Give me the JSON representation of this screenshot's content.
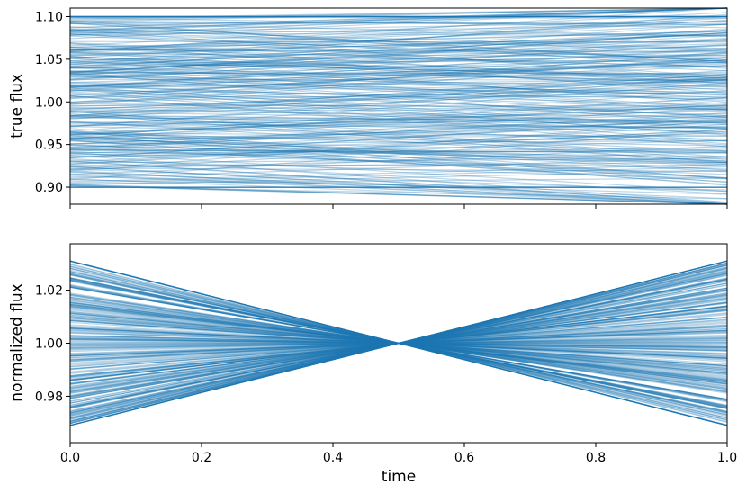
{
  "chart_data": [
    {
      "type": "line",
      "panel": "top",
      "xlabel": "",
      "ylabel": "true flux",
      "xlim": [
        0.0,
        1.0
      ],
      "ylim": [
        0.88,
        1.11
      ],
      "yticks": [
        0.9,
        0.95,
        1.0,
        1.05,
        1.1
      ],
      "ytick_labels": [
        "0.90",
        "0.95",
        "1.00",
        "1.05",
        "1.10"
      ],
      "xticks": [
        0.0,
        0.2,
        0.4,
        0.6,
        0.8,
        1.0
      ],
      "xtick_labels_shown": false,
      "line_color": "#1f77b4",
      "line_alpha": 0.3,
      "series_count": 300,
      "series_model": "flux(t) = a + b * t, clipped to [0.90, 1.10]",
      "series": [
        {
          "start": 1.1,
          "end": 1.1
        },
        {
          "start": 1.08,
          "end": 1.06
        },
        {
          "start": 1.06,
          "end": 1.04
        },
        {
          "start": 1.03,
          "end": 1.05
        },
        {
          "start": 1.0,
          "end": 0.98
        },
        {
          "start": 0.98,
          "end": 1.01
        },
        {
          "start": 0.96,
          "end": 0.94
        },
        {
          "start": 0.94,
          "end": 0.96
        },
        {
          "start": 0.92,
          "end": 0.93
        },
        {
          "start": 0.9,
          "end": 0.9
        }
      ],
      "grid": false
    },
    {
      "type": "line",
      "panel": "bottom",
      "xlabel": "time",
      "ylabel": "normalized flux",
      "xlim": [
        0.0,
        1.0
      ],
      "ylim": [
        0.9625,
        1.0375
      ],
      "yticks": [
        0.98,
        1.0,
        1.02
      ],
      "ytick_labels": [
        "0.98",
        "1.00",
        "1.02"
      ],
      "xticks": [
        0.0,
        0.2,
        0.4,
        0.6,
        0.8,
        1.0
      ],
      "xtick_labels": [
        "0.0",
        "0.2",
        "0.4",
        "0.6",
        "0.8",
        "1.0"
      ],
      "line_color": "#1f77b4",
      "line_alpha": 0.3,
      "series_count": 300,
      "series_model": "normalized flux = true flux / mean(true flux); pinched at t=0.5",
      "series": [
        {
          "start": 1.031,
          "end": 0.969
        },
        {
          "start": 1.02,
          "end": 0.98
        },
        {
          "start": 1.01,
          "end": 0.99
        },
        {
          "start": 1.0,
          "end": 1.0
        },
        {
          "start": 0.99,
          "end": 1.01
        },
        {
          "start": 0.98,
          "end": 1.02
        },
        {
          "start": 0.969,
          "end": 1.031
        }
      ],
      "grid": false
    }
  ]
}
